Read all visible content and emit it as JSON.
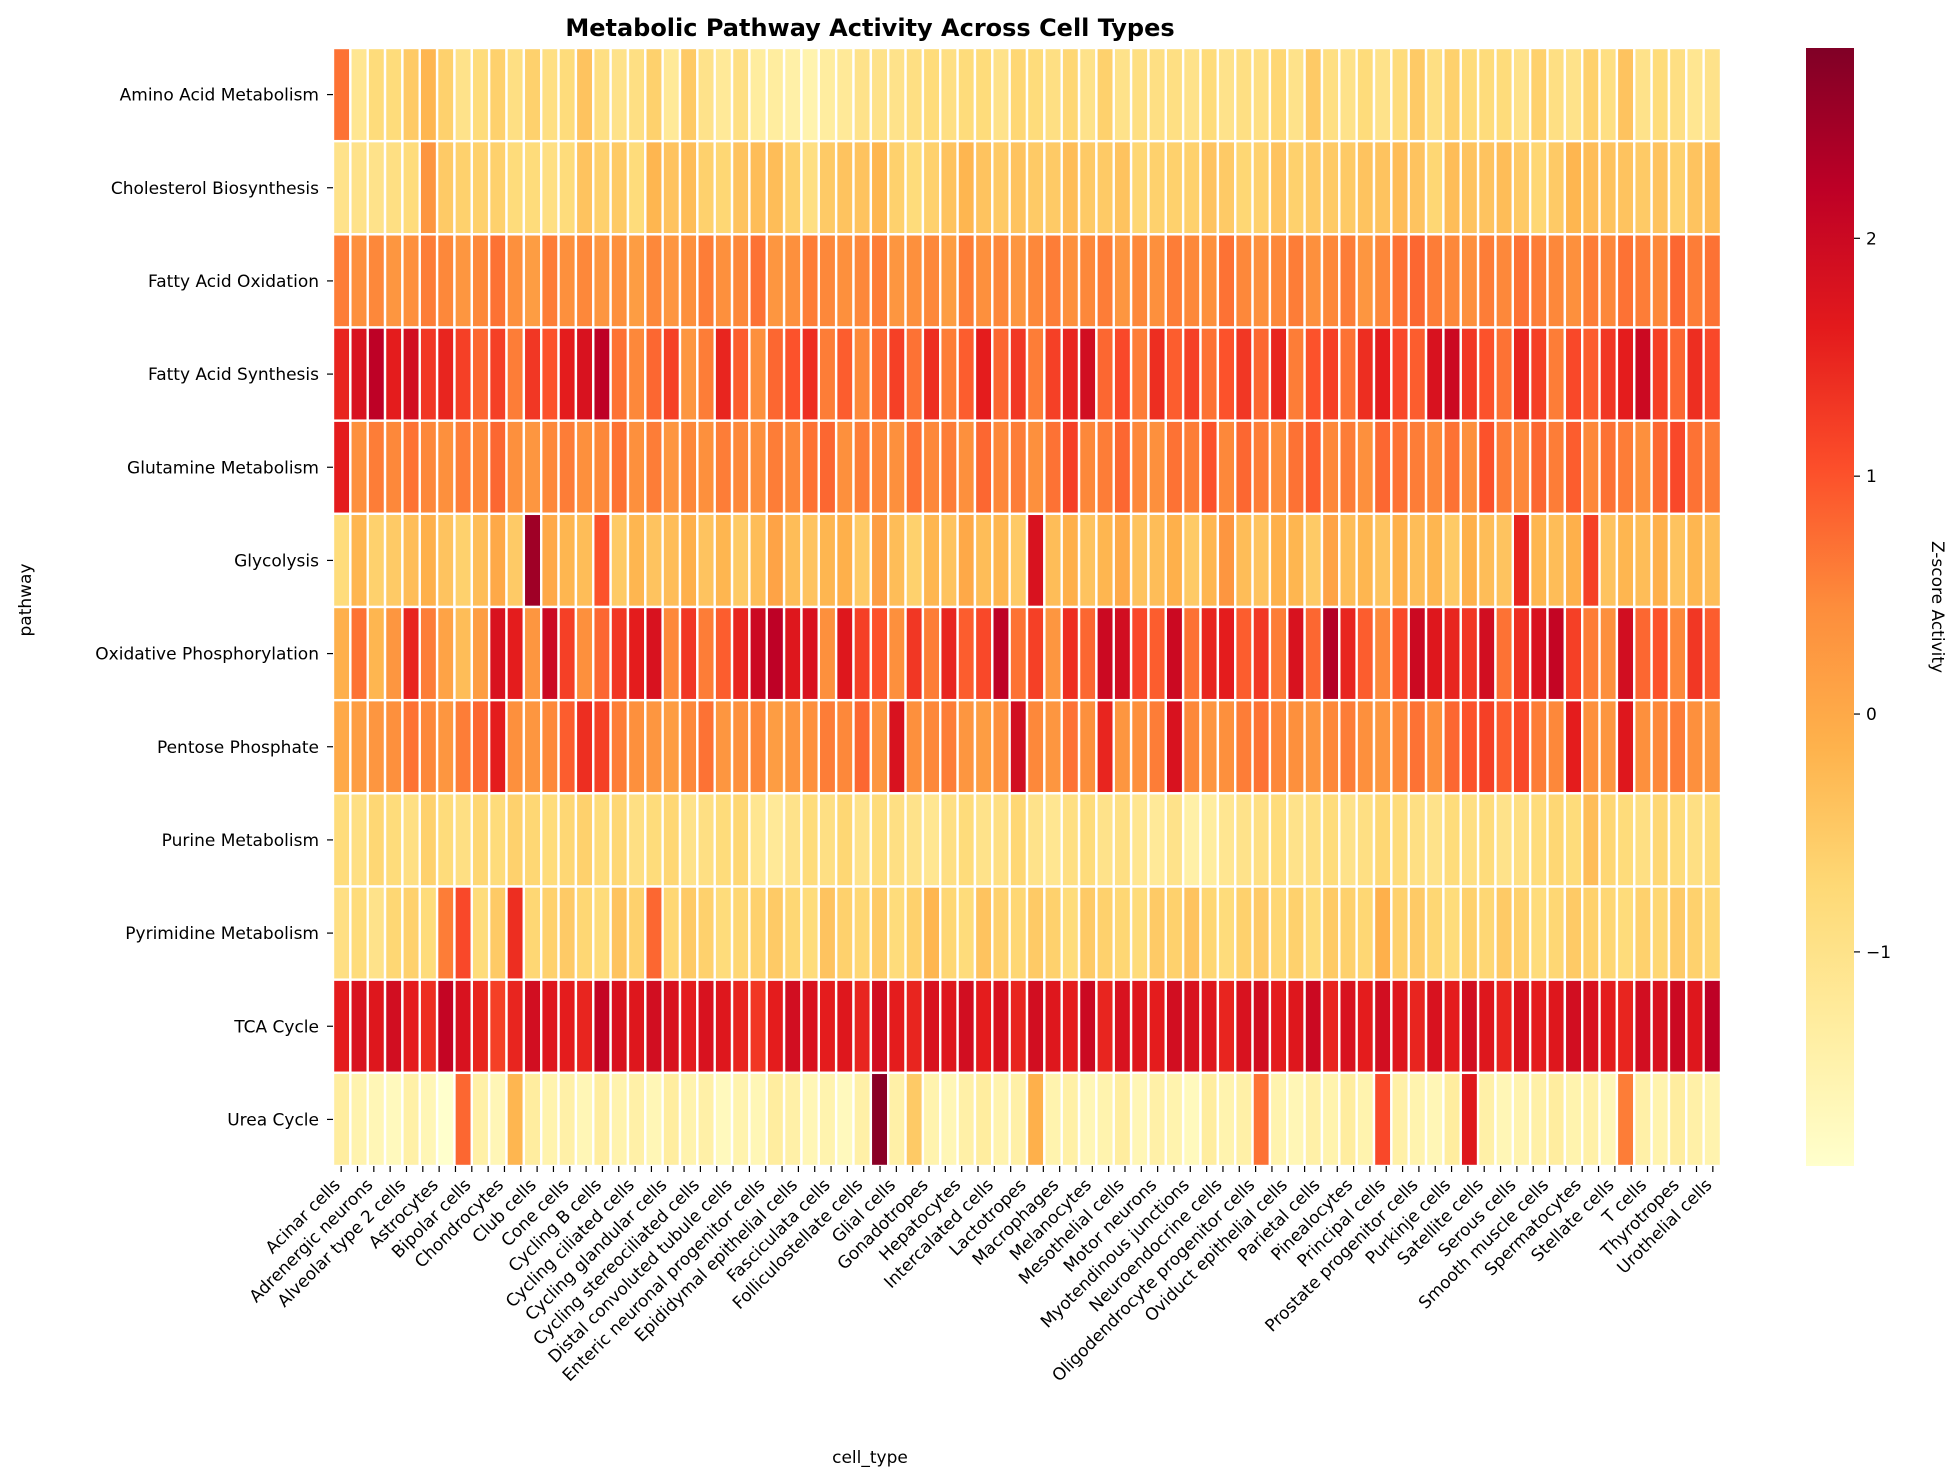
{
  "chart_data": {
    "type": "heatmap",
    "title": "Metabolic Pathway Activity Across Cell Types",
    "xlabel": "cell_type",
    "ylabel": "pathway",
    "colorbar_label": "Z-score Activity",
    "colormap": "YlOrRd",
    "colormap_stops": [
      "#ffffcc",
      "#ffeda0",
      "#fed976",
      "#feb24c",
      "#fd8d3c",
      "#fc4e2a",
      "#e31a1c",
      "#bd0026",
      "#800026"
    ],
    "vmin": -1.9,
    "vmax": 2.8,
    "colorbar_ticks": [
      -1,
      0,
      1,
      2
    ],
    "colorbar_tick_labels": [
      "−1",
      "0",
      "1",
      "2"
    ],
    "num_columns": 80,
    "pathways": [
      "Amino Acid Metabolism",
      "Cholesterol Biosynthesis",
      "Fatty Acid Oxidation",
      "Fatty Acid Synthesis",
      "Glutamine Metabolism",
      "Glycolysis",
      "Oxidative Phosphorylation",
      "Pentose Phosphate",
      "Purine Metabolism",
      "Pyrimidine Metabolism",
      "TCA Cycle",
      "Urea Cycle"
    ],
    "x_tick_labels": [
      "Acinar cells",
      "Adrenergic neurons",
      "Alveolar type 2 cells",
      "Astrocytes",
      "Bipolar cells",
      "Chondrocytes",
      "Club cells",
      "Cone cells",
      "Cycling B cells",
      "Cycling ciliated cells",
      "Cycling glandular cells",
      "Cycling stereociliated cells",
      "Distal convoluted tubule cells",
      "Enteric neuronal progenitor cells",
      "Epididymal epithelial cells",
      "Fasciculata cells",
      "Folliculostellate cells",
      "Glial cells",
      "Gonadotropes",
      "Hepatocytes",
      "Intercalated cells",
      "Lactotropes",
      "Macrophages",
      "Melanocytes",
      "Mesothelial cells",
      "Motor neurons",
      "Myotendinous junctions",
      "Neuroendocrine cells",
      "Oligodendrocyte progenitor cells",
      "Oviduct epithelial cells",
      "Parietal cells",
      "Pinealocytes",
      "Principal cells",
      "Prostate progenitor cells",
      "Purkinje cells",
      "Satellite cells",
      "Serous cells",
      "Smooth muscle cells",
      "Spermatocytes",
      "Stellate cells",
      "T cells",
      "Thyrotropes",
      "Urothelial cells"
    ],
    "x_tick_column_positions": [
      0,
      2,
      4,
      6,
      8,
      10,
      12,
      14,
      16,
      18,
      20,
      22,
      24,
      26,
      28,
      30,
      32,
      34,
      36,
      38,
      40,
      42,
      44,
      46,
      48,
      50,
      52,
      54,
      56,
      58,
      60,
      62,
      64,
      66,
      68,
      70,
      72,
      74,
      76,
      78,
      80,
      82,
      84
    ],
    "values": [
      [
        0.7,
        -1.1,
        -0.8,
        -0.8,
        -0.5,
        -0.2,
        -0.6,
        -1.0,
        -0.8,
        -0.6,
        -0.9,
        -0.6,
        -0.9,
        -0.8,
        -0.4,
        -0.9,
        -1.0,
        -0.9,
        -0.6,
        -1.2,
        -0.5,
        -1.0,
        -1.2,
        -0.9,
        -1.3,
        -1.3,
        -1.4,
        -1.5,
        -1.3,
        -1.2,
        -1.0,
        -1.0,
        -1.0,
        -0.9,
        -0.8,
        -0.9,
        -0.8,
        -0.8,
        -1.0,
        -0.7,
        -0.8,
        -0.9,
        -0.7,
        -1.0,
        -0.6,
        -1.0,
        -0.9,
        -0.9,
        -0.9,
        -1.0,
        -0.8,
        -1.0,
        -0.9,
        -0.9,
        -0.7,
        -1.0,
        -0.5,
        -0.9,
        -1.0,
        -0.8,
        -1.0,
        -0.8,
        -0.5,
        -0.9,
        -0.6,
        -0.8,
        -0.8,
        -0.8,
        -1.0,
        -0.6,
        -0.9,
        -1.0,
        -0.6,
        -0.9,
        -0.4,
        -1.0,
        -0.8,
        -0.9,
        -1.1,
        -1.0
      ],
      [
        -1.0,
        -1.0,
        -1.0,
        -0.9,
        -0.8,
        0.3,
        -0.5,
        -0.6,
        -0.6,
        -0.6,
        -0.8,
        -0.8,
        -0.9,
        -0.8,
        -0.4,
        -0.6,
        -0.5,
        -0.8,
        -0.2,
        -0.4,
        -0.3,
        -0.6,
        -0.7,
        -0.4,
        -0.3,
        -0.3,
        -0.6,
        -0.9,
        -0.5,
        -0.4,
        -0.4,
        -0.2,
        -0.6,
        -0.8,
        -0.6,
        -0.4,
        -0.2,
        -0.4,
        -0.5,
        -0.4,
        -0.5,
        -0.5,
        -0.3,
        -0.5,
        -0.5,
        -0.4,
        -0.7,
        -0.6,
        -0.6,
        -0.6,
        -0.4,
        -0.5,
        -0.7,
        -0.6,
        -0.4,
        -0.6,
        -0.5,
        -0.5,
        -0.5,
        -0.4,
        -0.4,
        -0.3,
        -0.4,
        -0.7,
        -0.3,
        -0.4,
        -0.4,
        -0.3,
        -0.5,
        -0.7,
        -0.5,
        -0.2,
        -0.3,
        -0.4,
        -0.4,
        -0.5,
        -0.4,
        -0.6,
        -0.4,
        -0.3
      ],
      [
        0.6,
        0.4,
        0.5,
        0.3,
        0.4,
        0.6,
        0.5,
        0.3,
        0.5,
        0.7,
        0.4,
        0.2,
        0.6,
        0.4,
        0.5,
        0.3,
        0.4,
        0.2,
        0.5,
        0.3,
        0.4,
        0.6,
        0.4,
        0.5,
        0.7,
        0.3,
        0.4,
        0.6,
        0.5,
        0.4,
        0.5,
        0.6,
        0.3,
        0.4,
        0.5,
        0.2,
        0.6,
        0.4,
        0.5,
        0.3,
        0.5,
        0.6,
        0.4,
        0.5,
        0.6,
        0.3,
        0.5,
        0.4,
        0.6,
        0.5,
        0.4,
        0.7,
        0.5,
        0.4,
        0.5,
        0.6,
        0.4,
        0.5,
        0.6,
        0.3,
        0.5,
        0.7,
        0.8,
        0.6,
        0.5,
        0.4,
        0.6,
        0.5,
        0.7,
        0.6,
        0.5,
        0.4,
        0.6,
        0.5,
        0.7,
        0.6,
        0.5,
        0.8,
        0.6,
        0.7
      ],
      [
        1.5,
        1.8,
        2.2,
        1.6,
        1.9,
        1.3,
        1.5,
        1.2,
        0.8,
        1.2,
        0.6,
        1.3,
        1.0,
        1.6,
        1.8,
        2.2,
        0.7,
        0.5,
        0.8,
        1.2,
        0.3,
        0.6,
        1.5,
        0.9,
        0.4,
        0.8,
        1.0,
        1.4,
        0.6,
        0.9,
        0.5,
        0.8,
        1.2,
        0.7,
        1.4,
        0.6,
        0.9,
        1.6,
        0.8,
        1.3,
        0.6,
        1.2,
        1.5,
        1.9,
        0.8,
        1.1,
        0.6,
        1.4,
        0.9,
        1.2,
        0.7,
        1.0,
        1.3,
        0.8,
        1.5,
        0.6,
        1.0,
        1.2,
        0.7,
        1.4,
        1.6,
        1.1,
        0.9,
        1.8,
        2.0,
        1.3,
        1.0,
        0.7,
        1.5,
        1.2,
        0.6,
        1.1,
        0.9,
        1.3,
        1.6,
        2.0,
        1.2,
        0.8,
        1.4,
        1.1
      ],
      [
        1.6,
        0.4,
        0.6,
        0.5,
        0.7,
        0.5,
        0.4,
        0.6,
        0.5,
        0.8,
        0.4,
        0.3,
        0.5,
        0.6,
        0.4,
        0.5,
        0.7,
        0.4,
        0.6,
        0.3,
        0.5,
        0.4,
        0.6,
        0.5,
        0.4,
        0.6,
        0.5,
        0.7,
        0.8,
        0.4,
        0.6,
        0.5,
        0.4,
        0.7,
        0.5,
        0.6,
        0.4,
        0.8,
        0.5,
        0.6,
        0.4,
        0.7,
        1.2,
        0.5,
        0.6,
        0.8,
        0.5,
        0.4,
        0.7,
        0.6,
        1.0,
        0.5,
        0.8,
        0.6,
        0.4,
        0.7,
        0.9,
        0.5,
        0.6,
        0.4,
        0.8,
        0.7,
        0.6,
        0.5,
        0.7,
        0.4,
        1.0,
        0.6,
        0.5,
        0.8,
        0.6,
        0.9,
        0.5,
        0.7,
        0.6,
        0.4,
        0.8,
        1.1,
        0.7,
        0.6
      ],
      [
        -0.8,
        -0.2,
        -0.6,
        -0.5,
        -0.3,
        -0.1,
        -0.4,
        -0.6,
        -0.3,
        0.0,
        -0.5,
        2.5,
        0.0,
        -0.2,
        -0.3,
        1.0,
        -0.5,
        -0.2,
        -0.4,
        -0.3,
        -0.1,
        -0.4,
        -0.2,
        -0.5,
        -0.3,
        0.1,
        -0.3,
        -0.4,
        -0.2,
        -0.1,
        -0.5,
        0.2,
        -0.3,
        -0.6,
        -0.2,
        -0.4,
        0.0,
        -0.3,
        -0.2,
        -0.5,
        1.8,
        -0.3,
        -0.1,
        -0.4,
        -0.2,
        0.0,
        -0.4,
        -0.3,
        -0.1,
        -0.5,
        -0.2,
        0.3,
        -0.3,
        -0.4,
        -0.1,
        -0.2,
        -0.5,
        0.1,
        -0.3,
        -0.2,
        -0.4,
        -0.1,
        -0.3,
        -0.2,
        -0.5,
        -0.1,
        -0.3,
        -0.4,
        1.5,
        -0.2,
        -0.3,
        -0.1,
        1.2,
        -0.4,
        -0.2,
        -0.3,
        -0.1,
        -0.4,
        -0.2,
        -0.3
      ],
      [
        -0.1,
        0.7,
        -0.2,
        0.3,
        1.5,
        0.6,
        0.1,
        -0.3,
        0.2,
        1.8,
        1.6,
        0.3,
        2.0,
        1.2,
        0.4,
        0.8,
        1.3,
        1.6,
        1.8,
        0.5,
        1.3,
        0.6,
        0.9,
        1.5,
        2.0,
        2.2,
        1.7,
        1.8,
        0.4,
        1.7,
        1.2,
        1.0,
        0.4,
        1.3,
        0.6,
        1.5,
        0.9,
        1.1,
        2.2,
        0.7,
        1.2,
        0.3,
        1.4,
        0.8,
        2.0,
        1.9,
        1.1,
        0.9,
        2.0,
        0.7,
        1.5,
        1.6,
        0.9,
        1.3,
        0.6,
        1.8,
        0.8,
        2.3,
        1.5,
        0.9,
        0.5,
        1.1,
        2.0,
        1.7,
        1.5,
        1.3,
        1.9,
        0.7,
        1.4,
        1.8,
        2.1,
        1.2,
        0.6,
        0.4,
        1.9,
        0.8,
        1.0,
        0.5,
        1.3,
        0.9
      ],
      [
        0.0,
        0.2,
        0.3,
        0.4,
        0.7,
        0.5,
        0.3,
        0.6,
        0.8,
        1.6,
        0.4,
        0.3,
        0.5,
        0.9,
        1.4,
        1.2,
        0.6,
        0.4,
        0.3,
        0.2,
        0.5,
        0.7,
        0.3,
        0.4,
        0.5,
        0.2,
        0.3,
        0.4,
        0.6,
        0.5,
        0.8,
        0.3,
        1.8,
        0.4,
        0.5,
        0.6,
        0.3,
        0.2,
        0.4,
        1.9,
        0.5,
        0.3,
        0.7,
        0.4,
        1.5,
        0.3,
        0.4,
        0.6,
        1.8,
        0.5,
        0.3,
        0.4,
        0.6,
        0.7,
        0.5,
        0.4,
        0.3,
        0.5,
        0.6,
        0.4,
        0.3,
        0.5,
        0.7,
        0.4,
        0.8,
        1.0,
        1.2,
        0.9,
        1.1,
        0.6,
        0.5,
        1.6,
        0.4,
        0.3,
        1.7,
        0.4,
        0.5,
        0.6,
        0.4,
        0.3
      ],
      [
        -0.8,
        -0.9,
        -0.7,
        -0.8,
        -0.9,
        -0.6,
        -0.8,
        -0.9,
        -0.7,
        -0.8,
        -0.6,
        -0.7,
        -0.8,
        -0.7,
        -0.6,
        -0.8,
        -0.7,
        -0.9,
        -0.8,
        -0.7,
        -1.0,
        -0.9,
        -0.8,
        -0.7,
        -1.1,
        -1.2,
        -1.0,
        -0.8,
        -0.9,
        -0.7,
        -1.0,
        -0.8,
        -0.9,
        -1.0,
        -1.1,
        -0.9,
        -0.8,
        -1.0,
        -0.9,
        -0.7,
        -1.0,
        -1.1,
        -0.9,
        -0.8,
        -1.0,
        -0.9,
        -1.1,
        -1.2,
        -1.0,
        -1.4,
        -1.3,
        -1.1,
        -1.0,
        -0.9,
        -0.8,
        -1.0,
        -0.9,
        -0.8,
        -1.0,
        -0.9,
        -0.7,
        -0.8,
        -0.9,
        -1.0,
        -0.8,
        -0.9,
        -0.8,
        -1.0,
        -0.9,
        -0.8,
        -0.7,
        -0.8,
        -0.3,
        -0.7,
        -0.8,
        -0.9,
        -0.7,
        -0.8,
        -0.9,
        -0.8
      ],
      [
        -0.9,
        -0.8,
        -1.0,
        -0.7,
        -0.6,
        -0.8,
        0.6,
        1.1,
        -0.8,
        -0.5,
        1.4,
        -0.7,
        -0.6,
        -0.5,
        -0.7,
        -0.8,
        -0.4,
        -0.6,
        0.8,
        -0.7,
        -0.5,
        -0.6,
        -0.8,
        -0.7,
        -0.6,
        -0.5,
        -0.7,
        -0.8,
        -0.4,
        -0.6,
        -0.7,
        -0.5,
        -0.8,
        -0.6,
        -0.2,
        -0.7,
        -0.8,
        -0.4,
        -0.6,
        -0.7,
        -0.5,
        -0.6,
        -0.8,
        -0.5,
        -0.6,
        -0.7,
        -0.8,
        -0.5,
        -0.6,
        -0.4,
        -0.7,
        -0.8,
        -0.6,
        -0.5,
        -0.7,
        -0.6,
        -0.8,
        -0.5,
        -0.6,
        -0.7,
        -0.1,
        -0.6,
        -0.5,
        -0.7,
        -0.8,
        -0.6,
        -0.7,
        -0.5,
        -0.6,
        -0.8,
        -0.7,
        -0.5,
        -0.6,
        -0.7,
        -0.8,
        -0.6,
        -0.7,
        -0.5,
        -0.6,
        -0.7
      ],
      [
        1.6,
        1.8,
        1.7,
        1.9,
        1.6,
        1.4,
        2.1,
        1.8,
        1.5,
        1.2,
        1.5,
        1.9,
        1.7,
        1.6,
        1.5,
        2.1,
        1.8,
        1.7,
        1.9,
        1.8,
        1.6,
        1.8,
        1.7,
        1.5,
        1.3,
        1.6,
        1.9,
        1.8,
        1.6,
        1.7,
        1.5,
        1.9,
        1.6,
        1.5,
        1.8,
        1.7,
        1.9,
        1.6,
        1.8,
        1.5,
        1.9,
        1.7,
        1.6,
        2.0,
        1.5,
        1.8,
        1.7,
        1.6,
        1.9,
        1.8,
        1.7,
        1.5,
        1.8,
        1.9,
        1.6,
        1.7,
        2.0,
        1.5,
        1.8,
        1.6,
        1.9,
        1.7,
        1.5,
        1.8,
        1.6,
        1.9,
        1.7,
        1.5,
        1.8,
        1.6,
        1.7,
        1.9,
        1.8,
        1.6,
        1.5,
        1.9,
        1.8,
        2.0,
        1.7,
        2.2
      ],
      [
        -1.3,
        -1.5,
        -1.6,
        -1.7,
        -1.4,
        -1.6,
        -1.9,
        0.8,
        -1.4,
        -1.6,
        -0.2,
        -1.3,
        -1.5,
        -1.4,
        -1.6,
        -1.3,
        -1.5,
        -1.4,
        -1.6,
        -1.3,
        -1.5,
        -1.4,
        -1.7,
        -1.5,
        -1.6,
        -1.3,
        -1.4,
        -1.6,
        -1.5,
        -1.7,
        -1.4,
        2.7,
        -1.4,
        -0.5,
        -1.5,
        -1.6,
        -1.4,
        -1.3,
        -1.5,
        -1.4,
        -0.1,
        -1.5,
        -1.4,
        -1.6,
        -1.5,
        -1.3,
        -1.6,
        -1.4,
        -1.5,
        -1.7,
        -1.3,
        -1.5,
        -1.4,
        0.7,
        -1.5,
        -1.6,
        -1.4,
        -1.5,
        -1.3,
        -1.5,
        1.1,
        -1.4,
        -1.5,
        -1.6,
        -1.3,
        1.7,
        -1.4,
        -1.6,
        -1.5,
        -1.4,
        -1.3,
        -1.5,
        -1.4,
        -1.6,
        0.6,
        -1.4,
        -1.5,
        -1.3,
        -1.4,
        -1.5
      ]
    ]
  }
}
